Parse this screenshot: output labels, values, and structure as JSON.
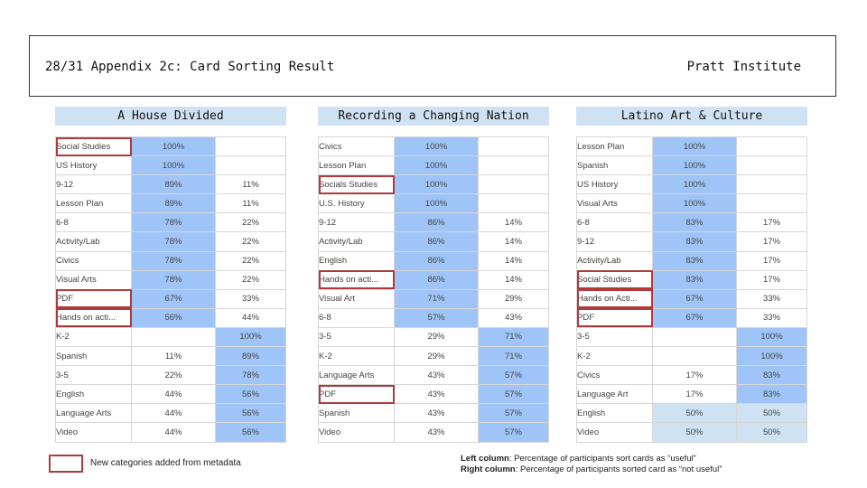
{
  "header": {
    "title": "28/31 Appendix 2c: Card Sorting Result",
    "org": "Pratt Institute"
  },
  "colors": {
    "useful_fill": "#9fc5f8",
    "light_fill": "#cfe2f3",
    "new_category_border": "#b03a3a"
  },
  "panels": [
    {
      "title": "A House Divided",
      "rows": [
        {
          "label": "Social Studies",
          "useful": "100%",
          "not_useful": "",
          "new": true
        },
        {
          "label": "US History",
          "useful": "100%",
          "not_useful": "",
          "new": false
        },
        {
          "label": "9-12",
          "useful": "89%",
          "not_useful": "11%",
          "new": false
        },
        {
          "label": "Lesson Plan",
          "useful": "89%",
          "not_useful": "11%",
          "new": false
        },
        {
          "label": "6-8",
          "useful": "78%",
          "not_useful": "22%",
          "new": false
        },
        {
          "label": "Activity/Lab",
          "useful": "78%",
          "not_useful": "22%",
          "new": false
        },
        {
          "label": "Civics",
          "useful": "78%",
          "not_useful": "22%",
          "new": false
        },
        {
          "label": "Visual Arts",
          "useful": "78%",
          "not_useful": "22%",
          "new": false
        },
        {
          "label": "PDF",
          "useful": "67%",
          "not_useful": "33%",
          "new": true
        },
        {
          "label": "Hands on acti...",
          "useful": "56%",
          "not_useful": "44%",
          "new": true
        },
        {
          "label": "K-2",
          "useful": "",
          "not_useful": "100%",
          "new": false
        },
        {
          "label": "Spanish",
          "useful": "11%",
          "not_useful": "89%",
          "new": false
        },
        {
          "label": "3-5",
          "useful": "22%",
          "not_useful": "78%",
          "new": false
        },
        {
          "label": "English",
          "useful": "44%",
          "not_useful": "56%",
          "new": false
        },
        {
          "label": "Language Arts",
          "useful": "44%",
          "not_useful": "56%",
          "new": false
        },
        {
          "label": "Video",
          "useful": "44%",
          "not_useful": "56%",
          "new": false
        }
      ]
    },
    {
      "title": "Recording a Changing Nation",
      "rows": [
        {
          "label": "Civics",
          "useful": "100%",
          "not_useful": "",
          "new": false
        },
        {
          "label": "Lesson Plan",
          "useful": "100%",
          "not_useful": "",
          "new": false
        },
        {
          "label": "Socials Studies",
          "useful": "100%",
          "not_useful": "",
          "new": true
        },
        {
          "label": "U.S. History",
          "useful": "100%",
          "not_useful": "",
          "new": false
        },
        {
          "label": "9-12",
          "useful": "86%",
          "not_useful": "14%",
          "new": false
        },
        {
          "label": "Activity/Lab",
          "useful": "86%",
          "not_useful": "14%",
          "new": false
        },
        {
          "label": "English",
          "useful": "86%",
          "not_useful": "14%",
          "new": false
        },
        {
          "label": "Hands on acti...",
          "useful": "86%",
          "not_useful": "14%",
          "new": true
        },
        {
          "label": "Visual Art",
          "useful": "71%",
          "not_useful": "29%",
          "new": false
        },
        {
          "label": "6-8",
          "useful": "57%",
          "not_useful": "43%",
          "new": false
        },
        {
          "label": "3-5",
          "useful": "29%",
          "not_useful": "71%",
          "new": false
        },
        {
          "label": "K-2",
          "useful": "29%",
          "not_useful": "71%",
          "new": false
        },
        {
          "label": "Language Arts",
          "useful": "43%",
          "not_useful": "57%",
          "new": false
        },
        {
          "label": "PDF",
          "useful": "43%",
          "not_useful": "57%",
          "new": true
        },
        {
          "label": "Spanish",
          "useful": "43%",
          "not_useful": "57%",
          "new": false
        },
        {
          "label": "Video",
          "useful": "43%",
          "not_useful": "57%",
          "new": false
        }
      ]
    },
    {
      "title": "Latino Art & Culture",
      "rows": [
        {
          "label": "Lesson Plan",
          "useful": "100%",
          "not_useful": "",
          "new": false
        },
        {
          "label": "Spanish",
          "useful": "100%",
          "not_useful": "",
          "new": false
        },
        {
          "label": "US History",
          "useful": "100%",
          "not_useful": "",
          "new": false
        },
        {
          "label": "Visual Arts",
          "useful": "100%",
          "not_useful": "",
          "new": false
        },
        {
          "label": "6-8",
          "useful": "83%",
          "not_useful": "17%",
          "new": false
        },
        {
          "label": "9-12",
          "useful": "83%",
          "not_useful": "17%",
          "new": false
        },
        {
          "label": "Activity/Lab",
          "useful": "83%",
          "not_useful": "17%",
          "new": false
        },
        {
          "label": "Social Studies",
          "useful": "83%",
          "not_useful": "17%",
          "new": true
        },
        {
          "label": "Hands on Acti...",
          "useful": "67%",
          "not_useful": "33%",
          "new": true
        },
        {
          "label": "PDF",
          "useful": "67%",
          "not_useful": "33%",
          "new": true
        },
        {
          "label": "3-5",
          "useful": "",
          "not_useful": "100%",
          "new": false
        },
        {
          "label": "K-2",
          "useful": "",
          "not_useful": "100%",
          "new": false
        },
        {
          "label": "Civics",
          "useful": "17%",
          "not_useful": "83%",
          "new": false
        },
        {
          "label": "Language Art",
          "useful": "17%",
          "not_useful": "83%",
          "new": false
        },
        {
          "label": "English",
          "useful": "50%",
          "not_useful": "50%",
          "new": false
        },
        {
          "label": "Video",
          "useful": "50%",
          "not_useful": "50%",
          "new": false
        }
      ]
    }
  ],
  "legend": {
    "text": "New categories added from metadata"
  },
  "notes": {
    "left_label": "Left column",
    "left_text": ": Percentage of participants sort cards as “useful”",
    "right_label": "Right column",
    "right_text": ": Percentage of participants sorted card as “not useful”"
  }
}
